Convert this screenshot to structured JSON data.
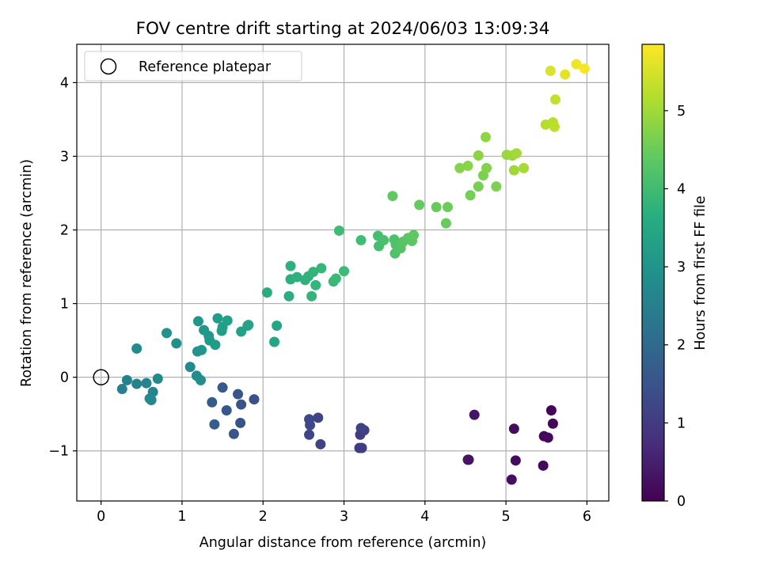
{
  "chart_data": {
    "type": "scatter",
    "title": "FOV centre drift starting at 2024/06/03 13:09:34",
    "xlabel": "Angular distance from reference (arcmin)",
    "ylabel": "Rotation from reference (arcmin)",
    "xlim": [
      -0.3,
      6.27
    ],
    "ylim": [
      -1.68,
      4.52
    ],
    "grid": true,
    "xticks": [
      0,
      1,
      2,
      3,
      4,
      5,
      6
    ],
    "yticks": [
      -1,
      0,
      1,
      2,
      3,
      4
    ],
    "legend": {
      "placement": "upper-left",
      "label": "Reference platepar"
    },
    "reference_point": {
      "x": 0,
      "y": 0
    },
    "colorbar": {
      "label": "Hours from first FF file",
      "colormap": "viridis",
      "range": [
        0,
        5.85
      ],
      "ticks": [
        0,
        1,
        2,
        3,
        4,
        5
      ]
    },
    "points": [
      {
        "x": 5.56,
        "y": -0.45,
        "t": 0.05
      },
      {
        "x": 5.58,
        "y": -0.63,
        "t": 0.08
      },
      {
        "x": 5.47,
        "y": -0.8,
        "t": 0.1
      },
      {
        "x": 5.52,
        "y": -0.82,
        "t": 0.12
      },
      {
        "x": 5.46,
        "y": -1.2,
        "t": 0.14
      },
      {
        "x": 5.1,
        "y": -0.7,
        "t": 0.18
      },
      {
        "x": 5.12,
        "y": -1.13,
        "t": 0.2
      },
      {
        "x": 5.07,
        "y": -1.39,
        "t": 0.22
      },
      {
        "x": 4.53,
        "y": -1.12,
        "t": 0.28
      },
      {
        "x": 4.54,
        "y": -1.12,
        "t": 0.3
      },
      {
        "x": 4.61,
        "y": -0.51,
        "t": 0.32
      },
      {
        "x": 3.19,
        "y": -0.96,
        "t": 1.0
      },
      {
        "x": 3.22,
        "y": -0.96,
        "t": 1.03
      },
      {
        "x": 3.2,
        "y": -0.78,
        "t": 1.06
      },
      {
        "x": 3.25,
        "y": -0.72,
        "t": 1.09
      },
      {
        "x": 3.21,
        "y": -0.69,
        "t": 1.12
      },
      {
        "x": 2.71,
        "y": -0.91,
        "t": 1.15
      },
      {
        "x": 2.68,
        "y": -0.55,
        "t": 1.18
      },
      {
        "x": 2.57,
        "y": -0.78,
        "t": 1.21
      },
      {
        "x": 2.58,
        "y": -0.65,
        "t": 1.24
      },
      {
        "x": 2.57,
        "y": -0.57,
        "t": 1.27
      },
      {
        "x": 1.89,
        "y": -0.3,
        "t": 1.45
      },
      {
        "x": 1.73,
        "y": -0.37,
        "t": 1.48
      },
      {
        "x": 1.72,
        "y": -0.62,
        "t": 1.51
      },
      {
        "x": 1.69,
        "y": -0.23,
        "t": 1.54
      },
      {
        "x": 1.64,
        "y": -0.77,
        "t": 1.57
      },
      {
        "x": 1.55,
        "y": -0.45,
        "t": 1.6
      },
      {
        "x": 1.5,
        "y": -0.14,
        "t": 1.63
      },
      {
        "x": 1.4,
        "y": -0.64,
        "t": 1.66
      },
      {
        "x": 1.37,
        "y": -0.34,
        "t": 1.69
      },
      {
        "x": 0.26,
        "y": -0.16,
        "t": 2.55
      },
      {
        "x": 0.32,
        "y": -0.04,
        "t": 2.58
      },
      {
        "x": 0.44,
        "y": -0.09,
        "t": 2.61
      },
      {
        "x": 0.56,
        "y": -0.08,
        "t": 2.64
      },
      {
        "x": 0.64,
        "y": -0.2,
        "t": 2.67
      },
      {
        "x": 0.62,
        "y": -0.31,
        "t": 2.7
      },
      {
        "x": 0.6,
        "y": -0.29,
        "t": 2.73
      },
      {
        "x": 0.7,
        "y": -0.02,
        "t": 2.76
      },
      {
        "x": 0.44,
        "y": 0.39,
        "t": 2.79
      },
      {
        "x": 1.1,
        "y": 0.14,
        "t": 2.82
      },
      {
        "x": 1.18,
        "y": 0.02,
        "t": 2.85
      },
      {
        "x": 1.23,
        "y": -0.04,
        "t": 2.88
      },
      {
        "x": 0.93,
        "y": 0.46,
        "t": 2.95
      },
      {
        "x": 0.81,
        "y": 0.6,
        "t": 2.98
      },
      {
        "x": 1.19,
        "y": 0.35,
        "t": 3.02
      },
      {
        "x": 1.24,
        "y": 0.37,
        "t": 3.05
      },
      {
        "x": 1.2,
        "y": 0.76,
        "t": 3.08
      },
      {
        "x": 1.27,
        "y": 0.64,
        "t": 3.11
      },
      {
        "x": 1.33,
        "y": 0.56,
        "t": 3.14
      },
      {
        "x": 1.34,
        "y": 0.5,
        "t": 3.17
      },
      {
        "x": 1.41,
        "y": 0.44,
        "t": 3.2
      },
      {
        "x": 1.44,
        "y": 0.8,
        "t": 3.23
      },
      {
        "x": 1.49,
        "y": 0.63,
        "t": 3.26
      },
      {
        "x": 1.5,
        "y": 0.68,
        "t": 3.29
      },
      {
        "x": 1.56,
        "y": 0.77,
        "t": 3.32
      },
      {
        "x": 1.73,
        "y": 0.62,
        "t": 3.35
      },
      {
        "x": 1.81,
        "y": 0.7,
        "t": 3.38
      },
      {
        "x": 1.82,
        "y": 0.71,
        "t": 3.41
      },
      {
        "x": 2.14,
        "y": 0.48,
        "t": 3.44
      },
      {
        "x": 2.17,
        "y": 0.7,
        "t": 3.47
      },
      {
        "x": 2.05,
        "y": 1.15,
        "t": 3.6
      },
      {
        "x": 2.32,
        "y": 1.1,
        "t": 3.63
      },
      {
        "x": 2.34,
        "y": 1.33,
        "t": 3.66
      },
      {
        "x": 2.34,
        "y": 1.51,
        "t": 3.69
      },
      {
        "x": 2.42,
        "y": 1.36,
        "t": 3.72
      },
      {
        "x": 2.52,
        "y": 1.32,
        "t": 3.75
      },
      {
        "x": 2.56,
        "y": 1.37,
        "t": 3.78
      },
      {
        "x": 2.6,
        "y": 1.1,
        "t": 3.81
      },
      {
        "x": 2.62,
        "y": 1.43,
        "t": 3.84
      },
      {
        "x": 2.65,
        "y": 1.25,
        "t": 3.87
      },
      {
        "x": 2.72,
        "y": 1.48,
        "t": 3.9
      },
      {
        "x": 2.87,
        "y": 1.3,
        "t": 3.93
      },
      {
        "x": 2.9,
        "y": 1.34,
        "t": 3.96
      },
      {
        "x": 3.0,
        "y": 1.44,
        "t": 3.99
      },
      {
        "x": 2.94,
        "y": 1.99,
        "t": 4.02
      },
      {
        "x": 3.21,
        "y": 1.86,
        "t": 4.05
      },
      {
        "x": 3.42,
        "y": 1.92,
        "t": 4.08
      },
      {
        "x": 3.43,
        "y": 1.78,
        "t": 4.11
      },
      {
        "x": 3.49,
        "y": 1.86,
        "t": 4.14
      },
      {
        "x": 3.62,
        "y": 1.87,
        "t": 4.17
      },
      {
        "x": 3.64,
        "y": 1.8,
        "t": 4.2
      },
      {
        "x": 3.63,
        "y": 1.68,
        "t": 4.23
      },
      {
        "x": 3.7,
        "y": 1.75,
        "t": 4.26
      },
      {
        "x": 3.73,
        "y": 1.84,
        "t": 4.29
      },
      {
        "x": 3.79,
        "y": 1.89,
        "t": 4.32
      },
      {
        "x": 3.84,
        "y": 1.85,
        "t": 4.35
      },
      {
        "x": 3.86,
        "y": 1.93,
        "t": 4.38
      },
      {
        "x": 3.6,
        "y": 2.46,
        "t": 4.41
      },
      {
        "x": 3.93,
        "y": 2.34,
        "t": 4.44
      },
      {
        "x": 4.14,
        "y": 2.31,
        "t": 4.47
      },
      {
        "x": 4.26,
        "y": 2.09,
        "t": 4.5
      },
      {
        "x": 4.28,
        "y": 2.31,
        "t": 4.53
      },
      {
        "x": 4.56,
        "y": 2.47,
        "t": 4.62
      },
      {
        "x": 4.66,
        "y": 2.59,
        "t": 4.65
      },
      {
        "x": 4.72,
        "y": 2.74,
        "t": 4.68
      },
      {
        "x": 4.88,
        "y": 2.59,
        "t": 4.71
      },
      {
        "x": 4.76,
        "y": 2.84,
        "t": 4.74
      },
      {
        "x": 4.43,
        "y": 2.84,
        "t": 4.77
      },
      {
        "x": 4.53,
        "y": 2.87,
        "t": 4.8
      },
      {
        "x": 4.66,
        "y": 3.01,
        "t": 4.83
      },
      {
        "x": 4.75,
        "y": 3.26,
        "t": 4.86
      },
      {
        "x": 5.01,
        "y": 3.02,
        "t": 4.95
      },
      {
        "x": 5.08,
        "y": 3.01,
        "t": 4.98
      },
      {
        "x": 5.1,
        "y": 2.81,
        "t": 5.01
      },
      {
        "x": 5.13,
        "y": 3.04,
        "t": 5.04
      },
      {
        "x": 5.22,
        "y": 2.84,
        "t": 5.07
      },
      {
        "x": 5.49,
        "y": 3.43,
        "t": 5.2
      },
      {
        "x": 5.58,
        "y": 3.46,
        "t": 5.23
      },
      {
        "x": 5.6,
        "y": 3.4,
        "t": 5.26
      },
      {
        "x": 5.61,
        "y": 3.77,
        "t": 5.35
      },
      {
        "x": 5.55,
        "y": 4.16,
        "t": 5.55
      },
      {
        "x": 5.73,
        "y": 4.11,
        "t": 5.62
      },
      {
        "x": 5.87,
        "y": 4.25,
        "t": 5.72
      },
      {
        "x": 5.97,
        "y": 4.19,
        "t": 5.8
      }
    ]
  }
}
